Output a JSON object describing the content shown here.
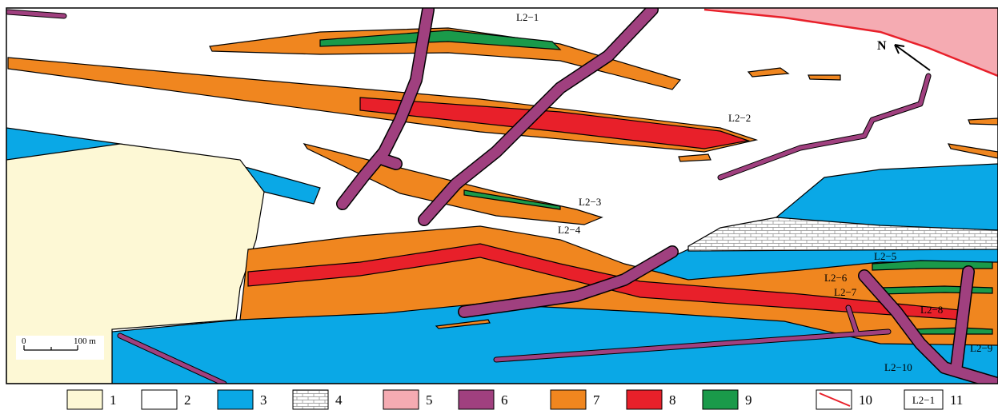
{
  "map": {
    "labels": [
      "L2−1",
      "L2−2",
      "L2−3",
      "L2−4",
      "L2−5",
      "L2−6",
      "L2−7",
      "L2−8",
      "L2−9",
      "L2−10"
    ],
    "north": "N",
    "scale": {
      "start": "0",
      "end": "100 m"
    },
    "legend": [
      "1",
      "2",
      "3",
      "4",
      "5",
      "6",
      "7",
      "8",
      "9",
      "10",
      "11"
    ],
    "legend_sample": "L2−1"
  }
}
